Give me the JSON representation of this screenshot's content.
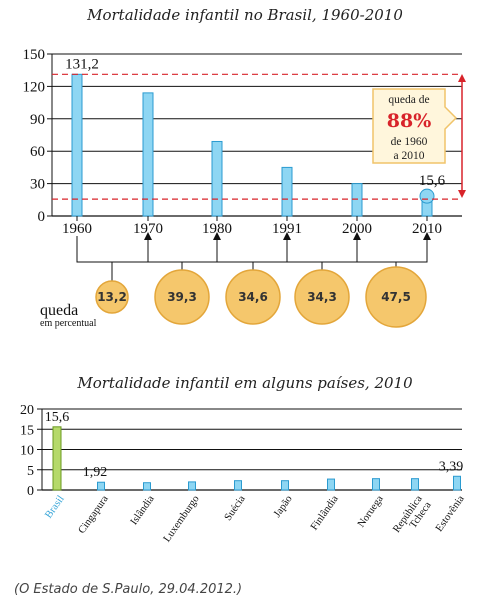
{
  "source": "(O Estado de S.Paulo, 29.04.2012.)",
  "chart_data": [
    {
      "type": "bar",
      "title": "Mortalidade infantil no Brasil, 1960-2010",
      "categories": [
        "1960",
        "1970",
        "1980",
        "1991",
        "2000",
        "2010"
      ],
      "values": [
        131.2,
        114,
        69,
        45,
        30,
        15.6
      ],
      "value_labels": [
        "131,2",
        "",
        "",
        "",
        "",
        "15,6"
      ],
      "yticks": [
        "0",
        "30",
        "60",
        "90",
        "120",
        "150"
      ],
      "ylim": [
        0,
        150
      ],
      "grid": true,
      "reference_lines": [
        131.2,
        15.6
      ],
      "annotation": {
        "line1": "queda de",
        "value": "88%",
        "line2": "de 1960",
        "line3": "a 2010"
      },
      "drops": {
        "label": "queda",
        "sublabel": "em percentual",
        "values": [
          "13,2",
          "39,3",
          "34,6",
          "34,3",
          "47,5"
        ]
      }
    },
    {
      "type": "bar",
      "title": "Mortalidade infantil em alguns países, 2010",
      "categories": [
        "Brasil",
        "Cingapura",
        "Islândia",
        "Luxemburgo",
        "Suécia",
        "Japão",
        "Finlândia",
        "Noruega",
        "República Tcheca",
        "Estovênia"
      ],
      "category_lines": [
        [
          "Brasil"
        ],
        [
          "Cingapura"
        ],
        [
          "Islândia"
        ],
        [
          "Luxemburgo"
        ],
        [
          "Suécia"
        ],
        [
          "Japão"
        ],
        [
          "Finlândia"
        ],
        [
          "Noruega"
        ],
        [
          "República",
          "Tcheca"
        ],
        [
          "Estovênia"
        ]
      ],
      "values": [
        15.6,
        1.92,
        1.8,
        2.0,
        2.3,
        2.3,
        2.7,
        2.8,
        2.8,
        3.39
      ],
      "value_labels": [
        "15,6",
        "1,92",
        "",
        "",
        "",
        "",
        "",
        "",
        "",
        "3,39"
      ],
      "yticks": [
        "0",
        "5",
        "10",
        "15",
        "20"
      ],
      "ylim": [
        0,
        20
      ],
      "grid": true
    }
  ]
}
